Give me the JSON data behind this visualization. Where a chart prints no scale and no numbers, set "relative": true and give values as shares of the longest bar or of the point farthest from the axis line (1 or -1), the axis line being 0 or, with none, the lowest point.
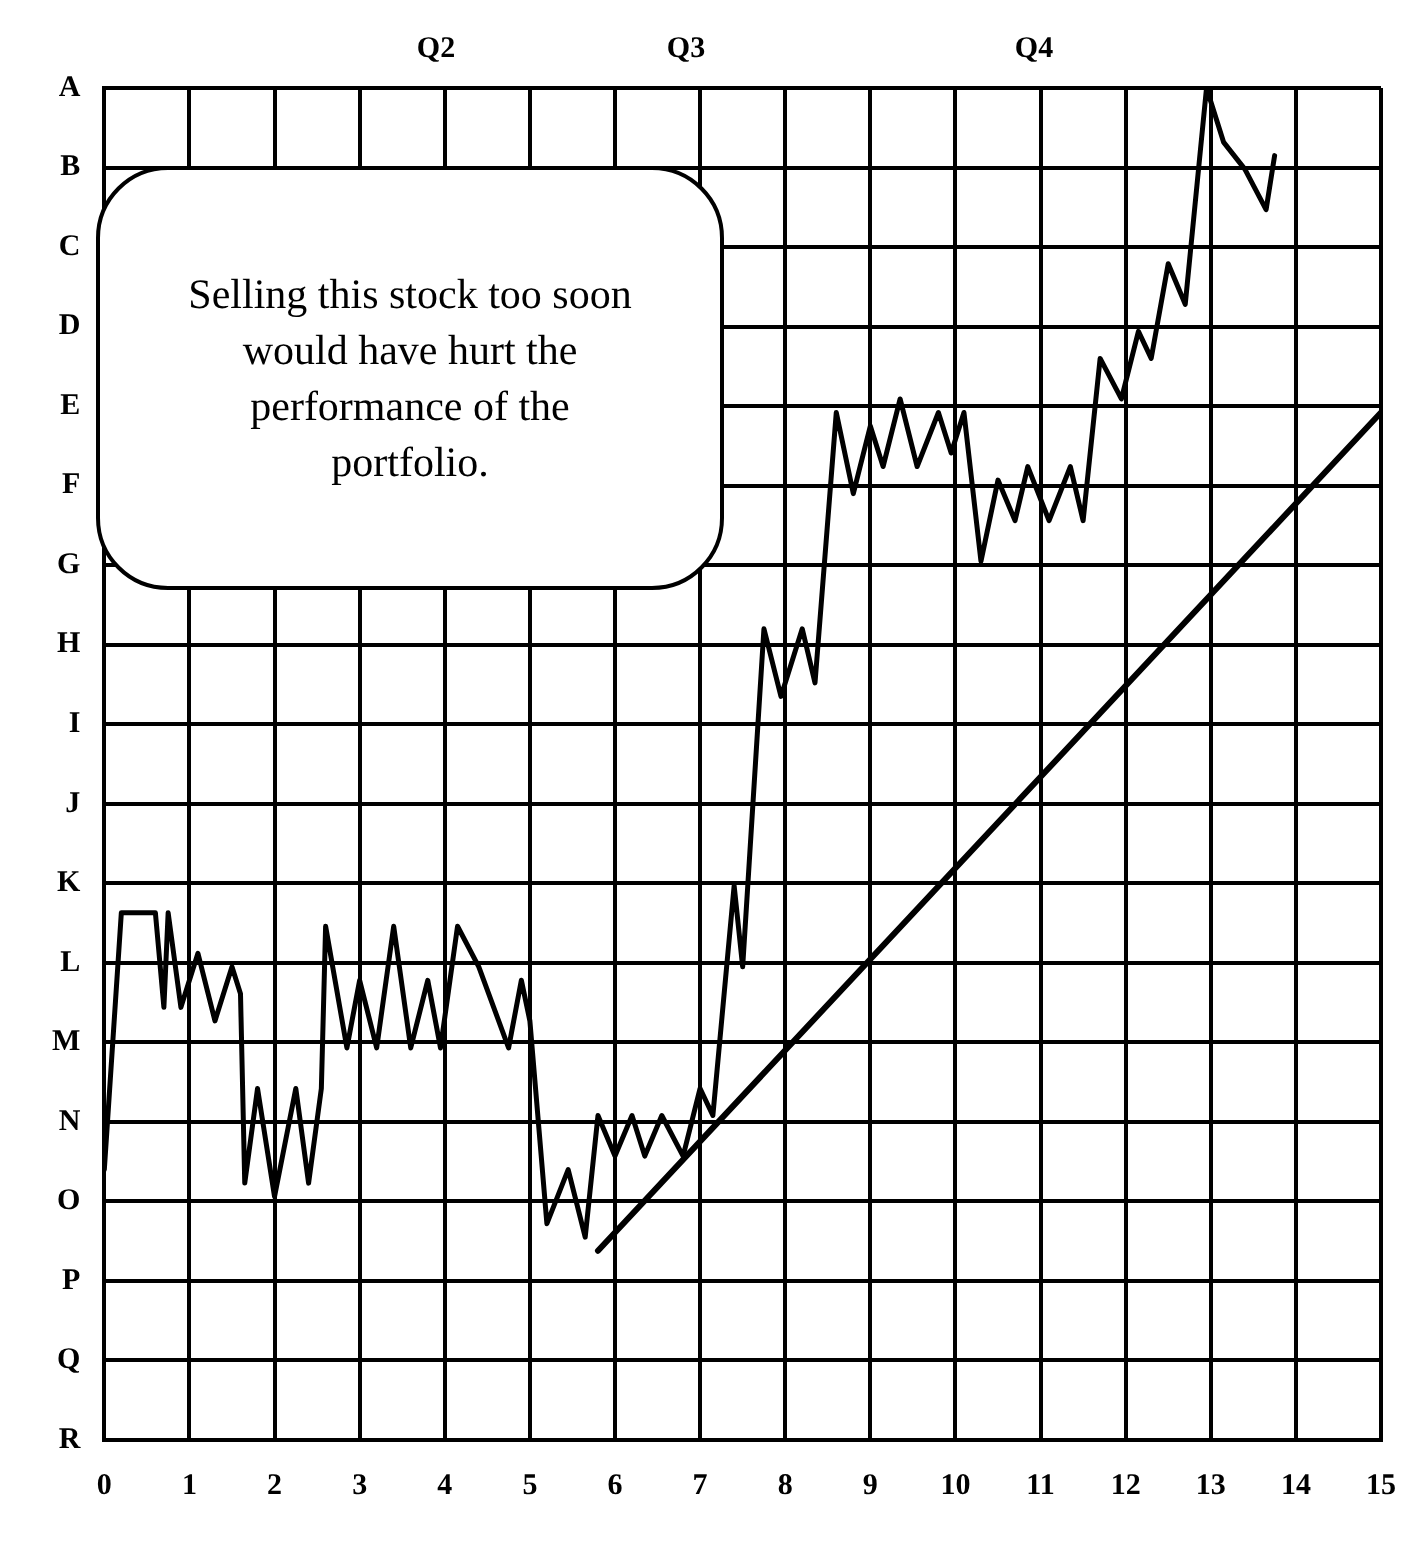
{
  "chart_data": {
    "type": "line",
    "relative": true,
    "xlim": [
      0,
      15
    ],
    "xticks": [
      0,
      1,
      2,
      3,
      4,
      5,
      6,
      7,
      8,
      9,
      10,
      11,
      12,
      13,
      14,
      15
    ],
    "y_categories": [
      "A",
      "B",
      "C",
      "D",
      "E",
      "F",
      "G",
      "H",
      "I",
      "J",
      "K",
      "L",
      "M",
      "N",
      "O",
      "P",
      "Q",
      "R"
    ],
    "grid": true,
    "line_style": "solid",
    "series": [
      {
        "color": "#000000",
        "x": [
          0,
          0.2,
          0.6,
          0.7,
          0.75,
          0.9,
          1.1,
          1.3,
          1.5,
          1.6,
          1.65,
          1.8,
          2.0,
          2.25,
          2.4,
          2.55,
          2.6,
          2.85,
          3.0,
          3.2,
          3.4,
          3.6,
          3.8,
          3.95,
          4.15,
          4.4,
          4.75,
          4.9,
          5.0,
          5.2,
          5.45,
          5.65,
          5.8,
          6.0,
          6.2,
          6.35,
          6.55,
          6.8,
          7.0,
          7.15,
          7.4,
          7.5,
          7.75,
          7.95,
          8.2,
          8.35,
          8.6,
          8.8,
          9.0,
          9.15,
          9.35,
          9.55,
          9.8,
          9.95,
          10.1,
          10.3,
          10.5,
          10.7,
          10.85,
          11.1,
          11.35,
          11.5,
          11.7,
          11.95,
          12.15,
          12.3,
          12.5,
          12.7,
          12.95,
          13.15,
          13.4,
          13.65,
          13.75
        ],
        "values": [
          0.2,
          0.39,
          0.39,
          0.32,
          0.39,
          0.32,
          0.36,
          0.31,
          0.35,
          0.33,
          0.19,
          0.26,
          0.18,
          0.26,
          0.19,
          0.26,
          0.38,
          0.29,
          0.34,
          0.29,
          0.38,
          0.29,
          0.34,
          0.29,
          0.38,
          0.35,
          0.29,
          0.34,
          0.31,
          0.16,
          0.2,
          0.15,
          0.24,
          0.21,
          0.24,
          0.21,
          0.24,
          0.21,
          0.26,
          0.24,
          0.41,
          0.35,
          0.6,
          0.55,
          0.6,
          0.56,
          0.76,
          0.7,
          0.75,
          0.72,
          0.77,
          0.72,
          0.76,
          0.73,
          0.76,
          0.65,
          0.71,
          0.68,
          0.72,
          0.68,
          0.72,
          0.68,
          0.8,
          0.77,
          0.82,
          0.8,
          0.87,
          0.84,
          1,
          0.96,
          0.94,
          0.91,
          0.95
        ]
      },
      {
        "type": "line",
        "color": "#000000",
        "x": [
          5.8,
          15
        ],
        "values": [
          0.14,
          0.76
        ]
      }
    ],
    "annotations": [
      "Q2",
      "Q3",
      "Q4",
      "Selling this stock too soon would have hurt the performance of the portfolio."
    ]
  }
}
